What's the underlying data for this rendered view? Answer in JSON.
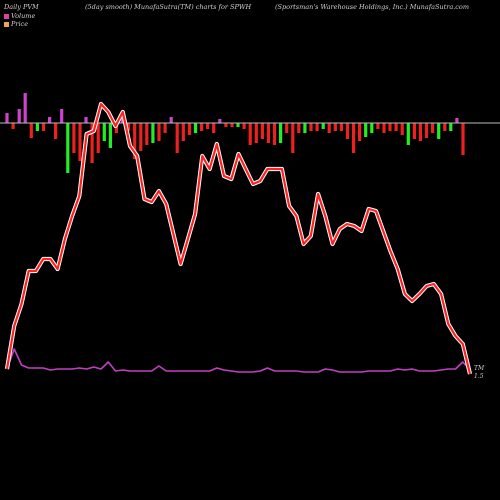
{
  "header": {
    "left": "Daily PVM",
    "middle": "(5day smooth) MunafaSutra(TM) charts for SPWH",
    "right": "(Sportsman's Warehouse  Holdings, Inc.) MunafaSutra.com"
  },
  "legend": [
    {
      "label": "Volume",
      "color": "#e040a0"
    },
    {
      "label": "Price",
      "color": "#f0a060"
    }
  ],
  "colors": {
    "background": "#000000",
    "price_line": "#ff2020",
    "price_glow": "#ffffff",
    "pvm_line": "#c040c0",
    "bar_up": "#22ee22",
    "bar_down": "#ee2020",
    "bar_mixed": "#cc44cc",
    "baseline": "#bbbbbb"
  },
  "chart_data": {
    "type": "line",
    "grid": false,
    "end_labels": [
      "TM",
      "1.5"
    ],
    "series": [
      {
        "values": [
          5,
          48,
          70,
          103,
          103,
          115,
          115,
          105,
          135,
          158,
          178,
          240,
          243,
          270,
          262,
          248,
          262,
          228,
          218,
          175,
          172,
          183,
          170,
          140,
          110,
          135,
          160,
          218,
          205,
          230,
          198,
          195,
          220,
          205,
          190,
          193,
          205,
          205,
          205,
          168,
          158,
          130,
          138,
          180,
          158,
          130,
          145,
          150,
          148,
          143,
          165,
          163,
          143,
          123,
          105,
          80,
          73,
          80,
          88,
          90,
          80,
          50,
          38,
          30,
          0
        ]
      },
      {
        "values": [
          5,
          25,
          9,
          6,
          6,
          6,
          4,
          5,
          5,
          5,
          6,
          5,
          7,
          5,
          12,
          3,
          4,
          3,
          3,
          3,
          3,
          8,
          3,
          3,
          3,
          3,
          3,
          3,
          3,
          6,
          4,
          3,
          2,
          2,
          2,
          3,
          6,
          3,
          3,
          3,
          3,
          2,
          2,
          2,
          5,
          4,
          2,
          2,
          2,
          2,
          3,
          3,
          3,
          3,
          5,
          4,
          5,
          3,
          3,
          3,
          4,
          5,
          5,
          12,
          4
        ]
      },
      {
        "values": [
          10,
          -6,
          14,
          30,
          -15,
          -8,
          -8,
          6,
          -16,
          14,
          -50,
          -30,
          -38,
          6,
          -40,
          -30,
          -18,
          -25,
          -10,
          8,
          -8,
          -36,
          -28,
          -22,
          -20,
          -18,
          -10,
          6,
          -30,
          -18,
          -12,
          -10,
          -8,
          -6,
          -10,
          4,
          -4,
          -4,
          -4,
          -6,
          -22,
          -20,
          -16,
          -20,
          -22,
          -20,
          -10,
          -30,
          -10,
          -10,
          -8,
          -8,
          -6,
          -10,
          -8,
          -8,
          -16,
          -30,
          -18,
          -14,
          -10,
          -6,
          -10,
          -8,
          -8,
          -12,
          -22,
          -16,
          -18,
          -15,
          -10,
          -16,
          -8,
          -8,
          5,
          -32
        ]
      }
    ]
  }
}
